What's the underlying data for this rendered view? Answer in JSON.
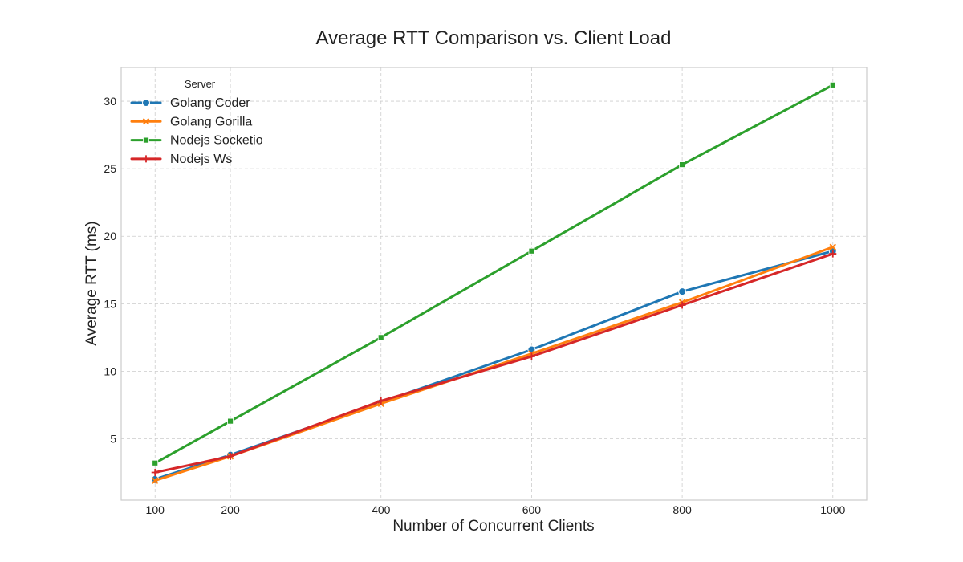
{
  "chart_data": {
    "type": "line",
    "title": "Average RTT Comparison vs. Client Load",
    "xlabel": "Number of Concurrent Clients",
    "ylabel": "Average RTT (ms)",
    "x": [
      100,
      200,
      400,
      600,
      800,
      1000
    ],
    "x_ticks": [
      100,
      200,
      400,
      600,
      800,
      1000
    ],
    "y_ticks": [
      5,
      10,
      15,
      20,
      25,
      30
    ],
    "xlim": [
      55,
      1045
    ],
    "ylim": [
      0.45,
      32.5
    ],
    "grid": true,
    "legend": {
      "title": "Server",
      "placement": "top-left"
    },
    "series": [
      {
        "name": "Golang Coder",
        "color": "#1f77b4",
        "marker": "circle",
        "values": [
          2.0,
          3.8,
          7.7,
          11.6,
          15.9,
          18.9
        ]
      },
      {
        "name": "Golang Gorilla",
        "color": "#ff7f0e",
        "marker": "x",
        "values": [
          1.9,
          3.7,
          7.6,
          11.3,
          15.1,
          19.2
        ]
      },
      {
        "name": "Nodejs Socketio",
        "color": "#2ca02c",
        "marker": "square",
        "values": [
          3.2,
          6.3,
          12.5,
          18.9,
          25.3,
          31.2
        ]
      },
      {
        "name": "Nodejs Ws",
        "color": "#d62728",
        "marker": "plus",
        "values": [
          2.5,
          3.7,
          7.8,
          11.1,
          14.9,
          18.7
        ]
      }
    ]
  }
}
